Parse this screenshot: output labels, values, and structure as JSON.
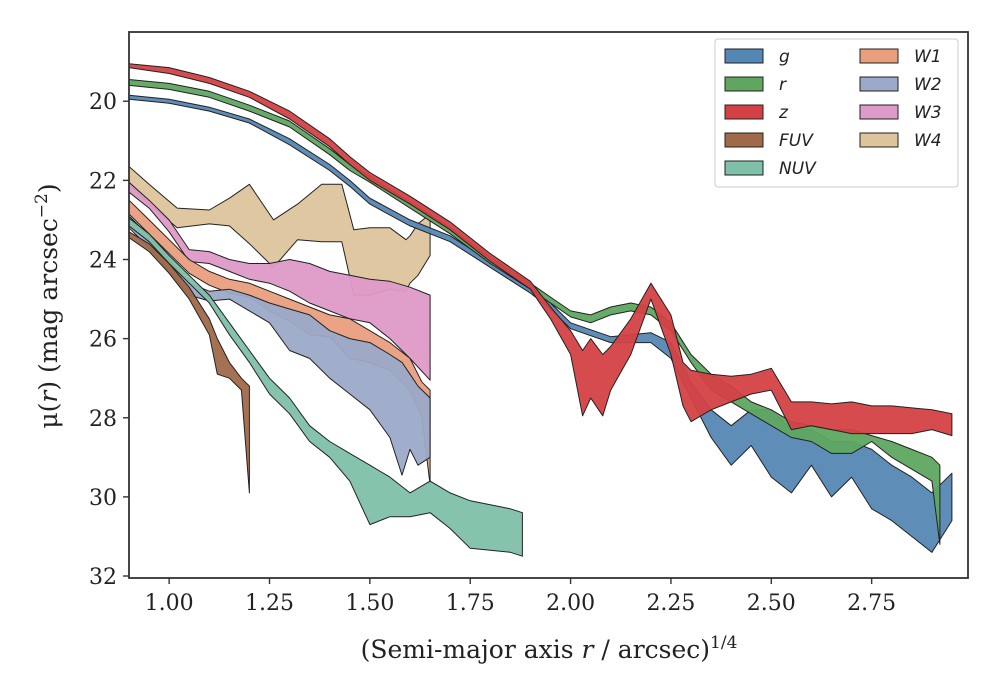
{
  "chart_data": {
    "type": "area",
    "title": "",
    "xlabel": "(Semi-major axis r / arcsec)^1/4",
    "xlabel_parts": {
      "pre": "(Semi-major axis ",
      "var": "r",
      "post": " / arcsec)",
      "sup": "1/4"
    },
    "ylabel": "μ(r) (mag arcsec^-2)",
    "ylabel_parts": {
      "pre": "μ(",
      "var": "r",
      "post": ") (mag arcsec",
      "sup": "−2",
      "end": ")"
    },
    "xlim": [
      0.9,
      2.99
    ],
    "ylim": [
      32.05,
      18.25
    ],
    "y_inverted": true,
    "xticks": [
      1.0,
      1.25,
      1.5,
      1.75,
      2.0,
      2.25,
      2.5,
      2.75
    ],
    "xtick_labels": [
      "1.00",
      "1.25",
      "1.50",
      "1.75",
      "2.00",
      "2.25",
      "2.50",
      "2.75"
    ],
    "yticks": [
      20,
      22,
      24,
      26,
      28,
      30,
      32
    ],
    "ytick_labels": [
      "20",
      "22",
      "24",
      "26",
      "28",
      "30",
      "32"
    ],
    "grid": false,
    "legend_position": "top-right",
    "legend_columns": 2,
    "series": [
      {
        "name": "W4",
        "color": "#ddc49c",
        "x": [
          0.9,
          0.95,
          1.02,
          1.1,
          1.15,
          1.2,
          1.26,
          1.32,
          1.38,
          1.43,
          1.46,
          1.5,
          1.55,
          1.59,
          1.6,
          1.62,
          1.65
        ],
        "y_upper": [
          21.65,
          22.1,
          22.7,
          22.75,
          22.45,
          22.1,
          23.0,
          22.6,
          22.1,
          22.1,
          23.25,
          23.2,
          23.2,
          23.5,
          23.4,
          23.1,
          22.85
        ],
        "y_lower": [
          22.1,
          22.6,
          23.2,
          23.1,
          23.15,
          23.6,
          24.2,
          23.5,
          23.55,
          23.55,
          24.9,
          24.9,
          24.75,
          24.8,
          24.6,
          24.4,
          23.9
        ]
      },
      {
        "name": "W3",
        "color": "#de9ac8",
        "x": [
          0.9,
          0.95,
          1.0,
          1.05,
          1.1,
          1.15,
          1.2,
          1.25,
          1.3,
          1.35,
          1.4,
          1.45,
          1.5,
          1.55,
          1.6,
          1.65
        ],
        "y_upper": [
          22.05,
          22.5,
          23.0,
          23.75,
          23.8,
          24.0,
          24.1,
          24.1,
          24.0,
          24.1,
          24.3,
          24.4,
          24.5,
          24.55,
          24.7,
          24.9
        ],
        "y_lower": [
          22.3,
          22.7,
          23.3,
          24.05,
          24.1,
          24.3,
          24.5,
          24.6,
          24.8,
          25.1,
          25.3,
          25.5,
          25.6,
          26.0,
          26.5,
          27.05
        ]
      },
      {
        "name": "W1",
        "color": "#e99f7e",
        "x": [
          0.9,
          0.95,
          1.0,
          1.05,
          1.1,
          1.15,
          1.2,
          1.25,
          1.3,
          1.35,
          1.4,
          1.45,
          1.5,
          1.55,
          1.6,
          1.63,
          1.65
        ],
        "y_upper": [
          22.5,
          23.0,
          23.5,
          24.0,
          24.3,
          24.5,
          24.6,
          24.8,
          25.0,
          25.2,
          25.4,
          25.5,
          25.8,
          26.1,
          26.5,
          27.1,
          27.3
        ],
        "y_lower": [
          22.85,
          23.35,
          23.85,
          24.35,
          24.65,
          24.85,
          24.95,
          25.3,
          25.55,
          25.9,
          25.95,
          26.5,
          26.6,
          26.8,
          27.3,
          28.0,
          29.7
        ]
      },
      {
        "name": "W2",
        "color": "#9baac9",
        "x": [
          0.9,
          0.95,
          1.0,
          1.05,
          1.1,
          1.15,
          1.2,
          1.25,
          1.3,
          1.35,
          1.4,
          1.45,
          1.5,
          1.55,
          1.58,
          1.6,
          1.62,
          1.65
        ],
        "y_upper": [
          22.9,
          23.4,
          24.0,
          24.6,
          24.8,
          24.75,
          24.9,
          25.1,
          25.25,
          25.4,
          25.8,
          26.0,
          26.1,
          26.4,
          26.6,
          26.9,
          27.2,
          27.5
        ],
        "y_lower": [
          23.2,
          23.7,
          24.3,
          24.9,
          25.05,
          25.0,
          25.3,
          25.6,
          26.3,
          26.5,
          27.0,
          27.4,
          27.8,
          28.5,
          29.45,
          28.8,
          29.2,
          29.0
        ]
      },
      {
        "name": "NUV",
        "color": "#7ec0a8",
        "x": [
          0.9,
          0.95,
          1.0,
          1.05,
          1.1,
          1.15,
          1.2,
          1.25,
          1.3,
          1.35,
          1.4,
          1.45,
          1.5,
          1.55,
          1.6,
          1.65,
          1.7,
          1.75,
          1.8,
          1.85,
          1.88
        ],
        "y_upper": [
          22.95,
          23.35,
          23.9,
          24.4,
          24.9,
          25.6,
          26.3,
          27.0,
          27.5,
          28.2,
          28.6,
          28.9,
          29.2,
          29.5,
          29.9,
          29.6,
          29.9,
          30.1,
          30.2,
          30.3,
          30.4
        ],
        "y_lower": [
          23.15,
          23.55,
          24.1,
          24.6,
          25.1,
          25.9,
          26.6,
          27.4,
          27.9,
          28.6,
          29.0,
          29.6,
          30.7,
          30.5,
          30.5,
          30.4,
          30.8,
          31.3,
          31.35,
          31.4,
          31.5
        ]
      },
      {
        "name": "FUV",
        "color": "#a0694a",
        "x": [
          0.9,
          0.95,
          1.0,
          1.05,
          1.1,
          1.12,
          1.15,
          1.18,
          1.2
        ],
        "y_upper": [
          23.3,
          23.6,
          24.1,
          24.7,
          25.5,
          26.0,
          26.6,
          27.0,
          27.2
        ],
        "y_lower": [
          23.45,
          23.8,
          24.35,
          25.0,
          25.9,
          26.9,
          27.0,
          27.3,
          29.9
        ]
      },
      {
        "name": "g",
        "color": "#5587b4",
        "x": [
          0.9,
          1.0,
          1.1,
          1.2,
          1.3,
          1.4,
          1.45,
          1.5,
          1.6,
          1.7,
          1.8,
          1.9,
          1.95,
          2.0,
          2.1,
          2.2,
          2.25,
          2.3,
          2.35,
          2.4,
          2.45,
          2.5,
          2.55,
          2.6,
          2.65,
          2.7,
          2.75,
          2.8,
          2.85,
          2.9,
          2.95
        ],
        "y_upper": [
          19.85,
          19.95,
          20.15,
          20.45,
          20.95,
          21.6,
          22.0,
          22.45,
          23.0,
          23.4,
          24.05,
          24.7,
          25.1,
          25.6,
          25.95,
          25.85,
          26.1,
          27.1,
          27.8,
          28.2,
          27.8,
          27.8,
          28.3,
          28.3,
          28.6,
          28.6,
          28.8,
          29.2,
          29.5,
          29.9,
          29.4
        ],
        "y_lower": [
          19.95,
          20.05,
          20.25,
          20.55,
          21.1,
          21.75,
          22.15,
          22.6,
          23.15,
          23.55,
          24.2,
          24.85,
          25.25,
          25.75,
          26.1,
          26.1,
          26.5,
          27.5,
          28.5,
          29.2,
          28.7,
          29.5,
          29.9,
          29.2,
          30.0,
          29.5,
          30.3,
          30.6,
          31.0,
          31.4,
          30.6
        ]
      },
      {
        "name": "r",
        "color": "#5fa660",
        "x": [
          0.9,
          1.0,
          1.1,
          1.2,
          1.3,
          1.4,
          1.45,
          1.5,
          1.6,
          1.7,
          1.8,
          1.9,
          1.95,
          2.0,
          2.05,
          2.1,
          2.15,
          2.2,
          2.25,
          2.3,
          2.35,
          2.4,
          2.45,
          2.5,
          2.55,
          2.6,
          2.65,
          2.7,
          2.75,
          2.8,
          2.85,
          2.9,
          2.92
        ],
        "y_upper": [
          19.45,
          19.55,
          19.75,
          20.1,
          20.5,
          21.2,
          21.6,
          21.9,
          22.55,
          23.2,
          23.95,
          24.6,
          24.95,
          25.3,
          25.4,
          25.2,
          25.1,
          25.2,
          25.6,
          26.4,
          26.9,
          27.2,
          27.6,
          27.8,
          28.1,
          28.2,
          28.3,
          28.3,
          28.45,
          28.6,
          28.8,
          29.0,
          29.2
        ],
        "y_lower": [
          19.6,
          19.7,
          19.9,
          20.25,
          20.65,
          21.35,
          21.75,
          22.05,
          22.7,
          23.35,
          24.1,
          24.75,
          25.1,
          25.45,
          25.6,
          25.4,
          25.3,
          25.4,
          25.8,
          26.6,
          27.3,
          27.6,
          27.9,
          28.2,
          28.5,
          28.6,
          28.9,
          28.9,
          28.6,
          29.0,
          29.3,
          29.6,
          31.2
        ]
      },
      {
        "name": "z",
        "color": "#d44145",
        "x": [
          0.9,
          1.0,
          1.1,
          1.2,
          1.3,
          1.4,
          1.45,
          1.5,
          1.6,
          1.7,
          1.8,
          1.9,
          1.95,
          2.0,
          2.03,
          2.05,
          2.08,
          2.1,
          2.15,
          2.2,
          2.25,
          2.28,
          2.3,
          2.35,
          2.4,
          2.45,
          2.5,
          2.55,
          2.6,
          2.65,
          2.7,
          2.75,
          2.8,
          2.85,
          2.9,
          2.95
        ],
        "y_upper": [
          19.05,
          19.15,
          19.4,
          19.75,
          20.25,
          20.95,
          21.4,
          21.8,
          22.4,
          23.05,
          23.85,
          24.55,
          25.2,
          25.8,
          26.3,
          26.0,
          26.4,
          26.2,
          25.5,
          24.6,
          25.4,
          26.6,
          26.8,
          26.9,
          26.95,
          26.9,
          26.75,
          27.6,
          27.6,
          27.65,
          27.6,
          27.7,
          27.7,
          27.75,
          27.8,
          27.9
        ],
        "y_lower": [
          19.15,
          19.3,
          19.55,
          19.9,
          20.45,
          21.15,
          21.6,
          22.0,
          22.6,
          23.25,
          24.05,
          24.75,
          25.5,
          26.4,
          27.95,
          27.5,
          27.95,
          27.3,
          26.4,
          25.0,
          26.4,
          27.7,
          28.1,
          27.8,
          27.6,
          27.4,
          27.3,
          28.3,
          28.2,
          28.3,
          28.4,
          28.4,
          28.4,
          28.4,
          28.3,
          28.45
        ]
      }
    ],
    "legend": {
      "columns": [
        [
          "g",
          "r",
          "z",
          "FUV",
          "NUV"
        ],
        [
          "W1",
          "W2",
          "W3",
          "W4"
        ]
      ]
    }
  }
}
